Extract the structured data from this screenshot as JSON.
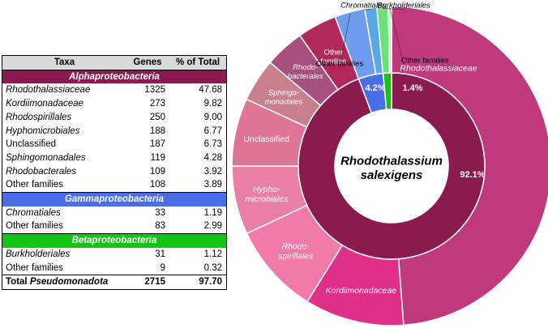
{
  "table": {
    "headers": [
      "Taxa",
      "Genes",
      "% of Total"
    ],
    "groups": [
      {
        "name": "Alphaproteobacteria",
        "color": "#8b1a4f",
        "rows": [
          {
            "taxon": "Rhodothalassiaceae",
            "genes": "1325",
            "pct": "47.68",
            "italic": true
          },
          {
            "taxon": "Kordiimonadaceae",
            "genes": "273",
            "pct": "9.82",
            "italic": true
          },
          {
            "taxon": "Rhodospirillales",
            "genes": "250",
            "pct": "9.00",
            "italic": true
          },
          {
            "taxon": "Hyphomicrobiales",
            "genes": "188",
            "pct": "6.77",
            "italic": true
          },
          {
            "taxon": "Unclassified",
            "genes": "187",
            "pct": "6.73",
            "italic": false
          },
          {
            "taxon": "Sphingomonadales",
            "genes": "119",
            "pct": "4.28",
            "italic": true
          },
          {
            "taxon": "Rhodobacterales",
            "genes": "109",
            "pct": "3.92",
            "italic": true
          },
          {
            "taxon": "Other families",
            "genes": "108",
            "pct": "3.89",
            "italic": false
          }
        ]
      },
      {
        "name": "Gammaproteobacteria",
        "color": "#4a6ee8",
        "rows": [
          {
            "taxon": "Chromatiales",
            "genes": "33",
            "pct": "1.19",
            "italic": true
          },
          {
            "taxon": "Other families",
            "genes": "83",
            "pct": "2.99",
            "italic": false
          }
        ]
      },
      {
        "name": "Betaproteobacteria",
        "color": "#11c511",
        "rows": [
          {
            "taxon": "Burkholderiales",
            "genes": "31",
            "pct": "1.12",
            "italic": true
          },
          {
            "taxon": "Other families",
            "genes": "9",
            "pct": "0.32",
            "italic": false
          }
        ]
      }
    ],
    "total": {
      "prefix": "Total ",
      "taxon": "Pseudomonadota",
      "genes": "2715",
      "pct": "97.70"
    }
  },
  "chart_data": {
    "type": "pie",
    "center_label": [
      "Rhodothalassium",
      "salexigens"
    ],
    "inner_ring": [
      {
        "name": "Alphaproteobacteria",
        "value": 92.1,
        "label": "92.1%",
        "color": "#8b1a4f"
      },
      {
        "name": "Gammaproteobacteria",
        "value": 4.2,
        "label": "4.2%",
        "color": "#4a6ee8"
      },
      {
        "name": "Betaproteobacteria",
        "value": 1.4,
        "label": "1.4%",
        "color": "#11c511"
      }
    ],
    "outer_ring": [
      {
        "name": "Rhodothalassiaceae",
        "value": 47.68,
        "label": [
          "Rhodothalassiaceae"
        ],
        "color": "#c0397d"
      },
      {
        "name": "Kordiimonadaceae",
        "value": 9.82,
        "label": [
          "Kordiimonadaceae"
        ],
        "color": "#e02f86"
      },
      {
        "name": "Rhodospirillales",
        "value": 9.0,
        "label": [
          "Rhodo-",
          "spirillales"
        ],
        "color": "#f27aa9"
      },
      {
        "name": "Hyphomicrobiales",
        "value": 6.77,
        "label": [
          "Hypho-",
          "microbiales"
        ],
        "color": "#e97fa5"
      },
      {
        "name": "Unclassified",
        "value": 6.73,
        "label": [
          "Unclassified"
        ],
        "color": "#de7496"
      },
      {
        "name": "Sphingomonadales",
        "value": 4.28,
        "label": [
          "Sphingo-",
          "monadales"
        ],
        "color": "#c97f8c"
      },
      {
        "name": "Rhodobacterales",
        "value": 3.92,
        "label": [
          "Rhodo-",
          "bacterales"
        ],
        "color": "#a8507e"
      },
      {
        "name": "Other families",
        "value": 3.89,
        "label": [
          "Other",
          "families"
        ],
        "color": "#b1285a"
      },
      {
        "name": "Other families",
        "value": 2.99,
        "label": [
          "Other families"
        ],
        "color": "#6f9cf0"
      },
      {
        "name": "Chromatiales",
        "value": 1.19,
        "label": [
          "Chromatiales"
        ],
        "color": "#5aa7e8"
      },
      {
        "name": "Burkholderiales",
        "value": 1.12,
        "label": [
          "Burkholderiales"
        ],
        "color": "#6ee07a"
      },
      {
        "name": "Other families",
        "value": 0.32,
        "label": [
          "Other families"
        ],
        "color": "#c8f2c0"
      }
    ]
  }
}
